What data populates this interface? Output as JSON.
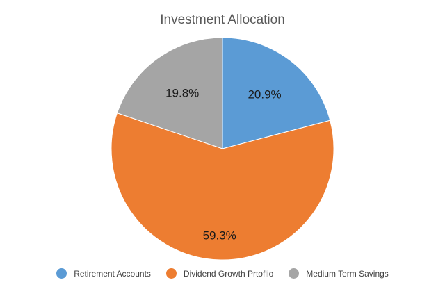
{
  "chart_data": {
    "type": "pie",
    "title": "Investment Allocation",
    "categories": [
      "Retirement Accounts",
      "Dividend Growth Prtoflio",
      "Medium Term Savings"
    ],
    "values": [
      20.9,
      59.3,
      19.8
    ],
    "labels": [
      "20.9%",
      "59.3%",
      "19.8%"
    ],
    "colors": [
      "#5B9BD5",
      "#ED7D31",
      "#A5A5A5"
    ],
    "start_angle": "12 o'clock",
    "direction": "clockwise",
    "legend_position": "bottom"
  },
  "legend": [
    {
      "label": "Retirement Accounts",
      "color": "#5B9BD5"
    },
    {
      "label": "Dividend Growth Prtoflio",
      "color": "#ED7D31"
    },
    {
      "label": "Medium Term Savings",
      "color": "#A5A5A5"
    }
  ]
}
